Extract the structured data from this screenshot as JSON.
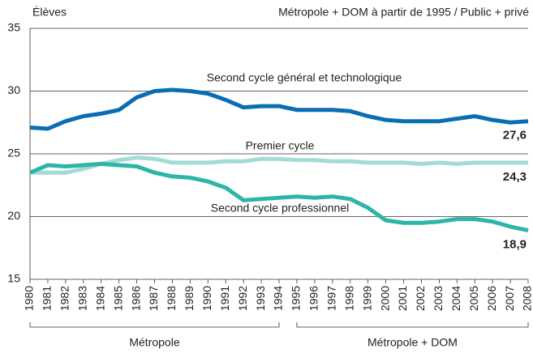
{
  "chart_data": {
    "type": "line",
    "y_label": "Élèves",
    "note": "Métropole + DOM à partir de 1995 / Public + privé",
    "categories": [
      "1980",
      "1981",
      "1982",
      "1983",
      "1984",
      "1985",
      "1986",
      "1987",
      "1988",
      "1989",
      "1990",
      "1991",
      "1992",
      "1993",
      "1994",
      "1995",
      "1996",
      "1997",
      "1998",
      "1999",
      "2000",
      "2001",
      "2002",
      "2003",
      "2004",
      "2005",
      "2006",
      "2007",
      "2008"
    ],
    "series": [
      {
        "name": "Second cycle général et technologique",
        "color": "#0b6db3",
        "values": [
          27.1,
          27.0,
          27.6,
          28.0,
          28.2,
          28.5,
          29.5,
          30.0,
          30.1,
          30.0,
          29.8,
          29.3,
          28.7,
          28.8,
          28.8,
          28.5,
          28.5,
          28.5,
          28.4,
          28.0,
          27.7,
          27.6,
          27.6,
          27.6,
          27.8,
          28.0,
          27.7,
          27.5,
          27.6
        ],
        "value_labels": [
          null,
          null,
          null,
          null,
          null,
          null,
          null,
          null,
          null,
          null,
          null,
          null,
          null,
          null,
          null,
          null,
          null,
          null,
          null,
          null,
          null,
          null,
          null,
          null,
          null,
          null,
          null,
          null,
          "27,6"
        ]
      },
      {
        "name": "Premier cycle",
        "color": "#a3dbd6",
        "values": [
          23.5,
          23.5,
          23.5,
          23.8,
          24.2,
          24.5,
          24.7,
          24.6,
          24.3,
          24.3,
          24.3,
          24.4,
          24.4,
          24.6,
          24.6,
          24.5,
          24.5,
          24.4,
          24.4,
          24.3,
          24.3,
          24.3,
          24.2,
          24.3,
          24.2,
          24.3,
          24.3,
          24.3,
          24.3
        ],
        "value_labels": [
          null,
          null,
          null,
          null,
          null,
          null,
          null,
          null,
          null,
          null,
          null,
          null,
          null,
          null,
          null,
          null,
          null,
          null,
          null,
          null,
          null,
          null,
          null,
          null,
          null,
          null,
          null,
          null,
          "24,3"
        ]
      },
      {
        "name": "Second cycle professionnel",
        "color": "#2db5a7",
        "values": [
          23.5,
          24.1,
          24.0,
          24.1,
          24.2,
          24.1,
          24.0,
          23.5,
          23.2,
          23.1,
          22.8,
          22.3,
          21.3,
          21.4,
          21.5,
          21.6,
          21.5,
          21.6,
          21.4,
          20.7,
          19.7,
          19.5,
          19.5,
          19.6,
          19.8,
          19.8,
          19.6,
          19.2,
          18.9
        ],
        "value_labels": [
          null,
          null,
          null,
          null,
          null,
          null,
          null,
          null,
          null,
          null,
          null,
          null,
          null,
          null,
          null,
          null,
          null,
          null,
          null,
          null,
          null,
          null,
          null,
          null,
          null,
          null,
          null,
          null,
          "18,9"
        ]
      }
    ],
    "periods": [
      {
        "label": "Métropole",
        "from": "1980",
        "to": "1994"
      },
      {
        "label": "Métropole + DOM",
        "from": "1995",
        "to": "2008"
      }
    ],
    "ylim": [
      15,
      35
    ],
    "yticks": [
      15,
      20,
      25,
      30,
      35
    ],
    "grid": true
  }
}
